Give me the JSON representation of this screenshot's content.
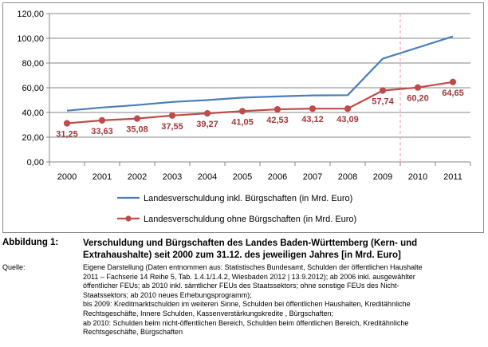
{
  "chart_data": {
    "type": "line",
    "x": [
      "2000",
      "2001",
      "2002",
      "2003",
      "2004",
      "2005",
      "2006",
      "2007",
      "2008",
      "2009",
      "2010",
      "2011"
    ],
    "ylim": [
      0,
      120
    ],
    "yticks": [
      "0,00",
      "20,00",
      "40,00",
      "60,00",
      "80,00",
      "100,00",
      "120,00"
    ],
    "ytick_values": [
      0,
      20,
      40,
      60,
      80,
      100,
      120
    ],
    "grid": "horizontal",
    "legend_position": "bottom",
    "reference_line_x": "2009.5",
    "series": [
      {
        "name": "Landesverschuldung inkl. Bürgschaften (in Mrd. Euro)",
        "color": "#4a7ebb",
        "marker": "none",
        "values": [
          41.5,
          44.0,
          46.0,
          48.5,
          50.0,
          52.0,
          53.0,
          53.8,
          54.0,
          83.5,
          92.5,
          101.5
        ]
      },
      {
        "name": "Landesverschuldung ohne Bürgschaften (in Mrd. Euro)",
        "color": "#be4b48",
        "marker": "circle",
        "values": [
          31.25,
          33.63,
          35.08,
          37.55,
          39.27,
          41.05,
          42.53,
          43.12,
          43.09,
          57.74,
          60.2,
          64.65
        ],
        "labels": [
          "31,25",
          "33,63",
          "35,08",
          "37,55",
          "39,27",
          "41,05",
          "42,53",
          "43,12",
          "43,09",
          "57,74",
          "60,20",
          "64,65"
        ]
      }
    ]
  },
  "caption": {
    "label": "Abbildung 1:",
    "title": "Verschuldung und Bürgschaften des Landes Baden-Württemberg (Kern- und Extrahaushalte) seit 2000 zum 31.12. des jeweiligen Jahres [in Mrd. Euro]"
  },
  "source": {
    "label": "Quelle:",
    "lines": [
      "Eigene Darstellung (Daten entnommen aus: Statistisches Bundesamt, Schulden der öffentlichen Haushalte",
      "2011 – Fachserie 14 Reihe 5, Tab. 1.4.1/1.4.2, Wiesbaden 2012 | 13.9.2012); ab 2006 inkl. ausgewählter",
      "öffentlicher FEUs; ab 2010 inkl. sämtlicher FEUs des Staatssektors; ohne sonstige FEUs des Nicht-",
      "Staatssektors; ab 2010 neues Erhebungsprogramm);",
      "bis 2009: Kreditmarktschulden im weiteren Sinne, Schulden bei öffentlichen Haushalten, Kreditähnliche",
      "Rechtsgeschäfte, Innere Schulden, Kassenverstärkungskredite , Bürgschaften;",
      "ab 2010: Schulden beim nicht-öffentlichen Bereich, Schulden beim öffentlichen Bereich, Kreditähnliche",
      "Rechtsgeschäfte, Bürgschaften"
    ]
  }
}
